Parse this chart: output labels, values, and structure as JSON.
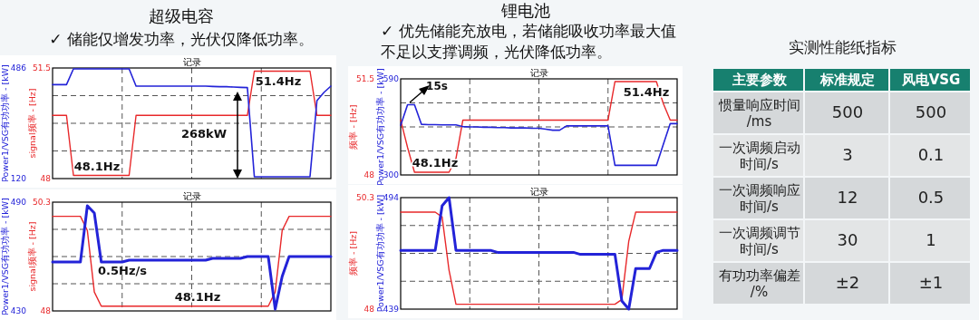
{
  "chart_data": [
    {
      "type": "line",
      "title": "记录",
      "ylabel": "signal频率 - [Hz]",
      "y2label": "Power1/VSG有功功率 - [kW]",
      "categories": [
        null,
        null,
        null,
        null,
        null,
        null,
        null,
        null,
        null,
        null,
        null,
        null,
        null,
        null,
        null,
        null,
        null,
        null,
        null,
        null,
        null,
        null,
        null,
        null,
        null,
        null,
        null,
        null,
        null,
        null,
        null,
        null,
        null,
        null,
        null,
        null,
        null,
        null,
        null,
        null,
        null
      ],
      "ylim": [
        48,
        51.5
      ],
      "yticks": [
        48,
        {
          "value": 48.875,
          "label": null
        },
        {
          "value": 49.75,
          "label": null
        },
        {
          "value": 50.625,
          "label": null
        },
        51.5
      ],
      "y2lim": [
        120,
        486
      ],
      "y2ticks": [
        120,
        486
      ],
      "grid": true,
      "line_style": "solid",
      "series": [
        {
          "color": "#e8282a",
          "values": [
            50,
            50,
            50,
            48.1,
            48.1,
            48.1,
            48.1,
            48.1,
            48.1,
            48.1,
            48.1,
            48.1,
            50,
            50,
            50,
            50,
            50,
            50,
            50,
            50,
            50,
            50,
            50,
            50,
            50,
            50,
            50,
            50,
            50,
            51.4,
            51.4,
            51.4,
            51.4,
            51.4,
            51.4,
            51.4,
            51.4,
            51.4,
            50,
            50,
            50
          ]
        },
        {
          "color": "#2323d8",
          "axis": "y2",
          "values": [
            431,
            431,
            431,
            483,
            483,
            483,
            483,
            483,
            483,
            483,
            483,
            483,
            426,
            426,
            426,
            426,
            426,
            426,
            426,
            426,
            426,
            426,
            426,
            425,
            424,
            424,
            423,
            422,
            421,
            126,
            126,
            126,
            126,
            126,
            126,
            126,
            126,
            126,
            378,
            405,
            426
          ]
        }
      ],
      "annotations": [
        "超级电容",
        "✓ 储能仅增发功率，光伏仅降低功率。",
        {
          "text": "51.4Hz",
          "y": 51.4
        },
        {
          "text": "48.1Hz",
          "y": 48.1
        },
        "268kW"
      ]
    },
    {
      "type": "line",
      "title": "记录",
      "ylabel": "signal频率 - [Hz]",
      "y2label": "Power1/VSG有功功率 - [kW]",
      "categories": [
        null,
        null,
        null,
        null,
        null,
        null,
        null,
        null,
        null,
        null,
        null,
        null,
        null,
        null,
        null,
        null,
        null,
        null,
        null,
        null,
        null,
        null,
        null,
        null,
        null,
        null,
        null,
        null,
        null,
        null,
        null,
        null,
        null,
        null,
        null,
        null,
        null,
        null,
        null,
        null,
        null
      ],
      "ylim": [
        48,
        50.3
      ],
      "yticks": [
        48,
        {
          "value": 48.575,
          "label": null
        },
        {
          "value": 49.15,
          "label": null
        },
        {
          "value": 49.725,
          "label": null
        },
        50.3
      ],
      "y2lim": [
        430,
        490
      ],
      "y2ticks": [
        430,
        490
      ],
      "grid": true,
      "line_style": "solid",
      "series": [
        {
          "color": "#e8282a",
          "values": [
            50,
            50,
            50,
            50,
            50,
            49.7,
            48.4,
            48.1,
            48.1,
            48.1,
            48.1,
            48.1,
            48.1,
            48.1,
            48.1,
            48.1,
            48.1,
            48.1,
            48.1,
            48.1,
            48.1,
            48.1,
            48.1,
            48.1,
            48.1,
            48.1,
            48.1,
            48.1,
            48.1,
            48.1,
            48.1,
            48.1,
            48.4,
            49.7,
            50,
            50,
            50,
            50,
            50,
            50,
            50
          ]
        },
        {
          "color": "#2323d8",
          "axis": "y2",
          "values": [
            457,
            457,
            457,
            457,
            457,
            488,
            484,
            457,
            457,
            457,
            457,
            458,
            458,
            458,
            458,
            458,
            458,
            458,
            458,
            458,
            458,
            458,
            458,
            459,
            459,
            459,
            459,
            459,
            460,
            460,
            460,
            460,
            431,
            449,
            460,
            460,
            460,
            460,
            460,
            460,
            460
          ]
        }
      ],
      "annotations": [
        "0.5Hz/s",
        {
          "text": "48.1Hz",
          "y": 48.1
        }
      ]
    },
    {
      "type": "line",
      "title": "记录",
      "ylabel": "频率 - [Hz]",
      "y2label": "Power1/VSG有功功率 - [kW]",
      "categories": [
        null,
        null,
        null,
        null,
        null,
        null,
        null,
        null,
        null,
        null,
        null,
        null,
        null,
        null,
        null,
        null,
        null,
        null,
        null,
        null,
        null,
        null,
        null,
        null,
        null,
        null,
        null,
        null,
        null,
        null,
        null,
        null,
        null,
        null,
        null,
        null,
        null,
        null,
        null,
        null,
        null
      ],
      "ylim": [
        48,
        51.5
      ],
      "yticks": [
        48,
        {
          "value": 48.875,
          "label": null
        },
        {
          "value": 49.75,
          "label": null
        },
        {
          "value": 50.625,
          "label": null
        },
        51.5
      ],
      "y2lim": [
        300,
        590
      ],
      "y2ticks": [
        300,
        590
      ],
      "grid": true,
      "line_style": "solid",
      "series": [
        {
          "color": "#e8282a",
          "values": [
            50,
            49,
            48.1,
            48.1,
            48.1,
            48.1,
            48.1,
            48.1,
            48.6,
            50,
            50,
            50,
            50,
            50,
            50,
            50,
            50,
            50,
            50,
            50,
            50,
            50,
            50,
            50,
            50,
            50,
            50,
            50,
            50,
            50,
            50,
            51.4,
            51.4,
            51.4,
            51.4,
            51.4,
            51.4,
            51.4,
            50.6,
            50,
            50
          ]
        },
        {
          "color": "#2323d8",
          "axis": "y2",
          "values": [
            450,
            512,
            512,
            453,
            452,
            452,
            451,
            451,
            451,
            446,
            445,
            445,
            444,
            444,
            443,
            443,
            442,
            442,
            442,
            441,
            441,
            438,
            435,
            435,
            448,
            448,
            448,
            448,
            448,
            448,
            448,
            329,
            329,
            329,
            329,
            329,
            329,
            329,
            392,
            455,
            455
          ]
        }
      ],
      "annotations": [
        "锂电池",
        "✓ 优先储能充放电，若储能吸收功率最大值不足以支撑调频，光伏降低功率。",
        {
          "text": "51.4Hz",
          "y": 51.4
        },
        {
          "text": "48.1Hz",
          "y": 48.1
        },
        "15s"
      ]
    },
    {
      "type": "line",
      "title": "记录",
      "ylabel": "频率 - [Hz]",
      "y2label": "Power1/VSG有功功率 - [kW]",
      "categories": [
        null,
        null,
        null,
        null,
        null,
        null,
        null,
        null,
        null,
        null,
        null,
        null,
        null,
        null,
        null,
        null,
        null,
        null,
        null,
        null,
        null,
        null,
        null,
        null,
        null,
        null,
        null,
        null,
        null,
        null,
        null,
        null,
        null,
        null,
        null,
        null,
        null,
        null,
        null,
        null,
        null
      ],
      "ylim": [
        48,
        50.3
      ],
      "yticks": [
        48,
        {
          "value": 48.575,
          "label": null
        },
        {
          "value": 49.15,
          "label": null
        },
        {
          "value": 49.725,
          "label": null
        },
        50.3
      ],
      "y2lim": [
        439,
        494
      ],
      "y2ticks": [
        439,
        494
      ],
      "grid": true,
      "line_style": "solid",
      "series": [
        {
          "color": "#e8282a",
          "values": [
            50,
            50,
            50,
            50,
            50,
            50,
            49.9,
            48.8,
            48.1,
            48.1,
            48.1,
            48.1,
            48.1,
            48.1,
            48.1,
            48.1,
            48.1,
            48.1,
            48.1,
            48.1,
            48.1,
            48.1,
            48.1,
            48.1,
            48.1,
            48.1,
            48.1,
            48.1,
            48.1,
            48.1,
            48.1,
            48.1,
            48.2,
            49.4,
            50,
            50,
            50,
            50,
            50,
            50,
            50
          ]
        },
        {
          "color": "#2323d8",
          "axis": "y2",
          "values": [
            468,
            468,
            468,
            468,
            468,
            468,
            490,
            494,
            468,
            468,
            468,
            468,
            468,
            468,
            467,
            467,
            467,
            467,
            467,
            467,
            467,
            467,
            467,
            467,
            467,
            467,
            466,
            466,
            466,
            466,
            466,
            466,
            443,
            439,
            459,
            459,
            459,
            467,
            468,
            468,
            468
          ]
        }
      ]
    },
    {
      "type": "other",
      "title": "实测性能纸指标",
      "categories": [
        "主要参数",
        "标准规定",
        "风电VSG"
      ],
      "y_categories": [
        "惯量响应时间/ms",
        "一次调频启动时间/s",
        "一次调频响应时间/s",
        "一次调频调节时间/s",
        "有功功率偏差/%"
      ],
      "cell_labels": [
        [
          "500",
          "500"
        ],
        [
          "3",
          "0.1"
        ],
        [
          "12",
          "0.5"
        ],
        [
          "30",
          "1"
        ],
        [
          "±2",
          "±1"
        ]
      ]
    }
  ]
}
